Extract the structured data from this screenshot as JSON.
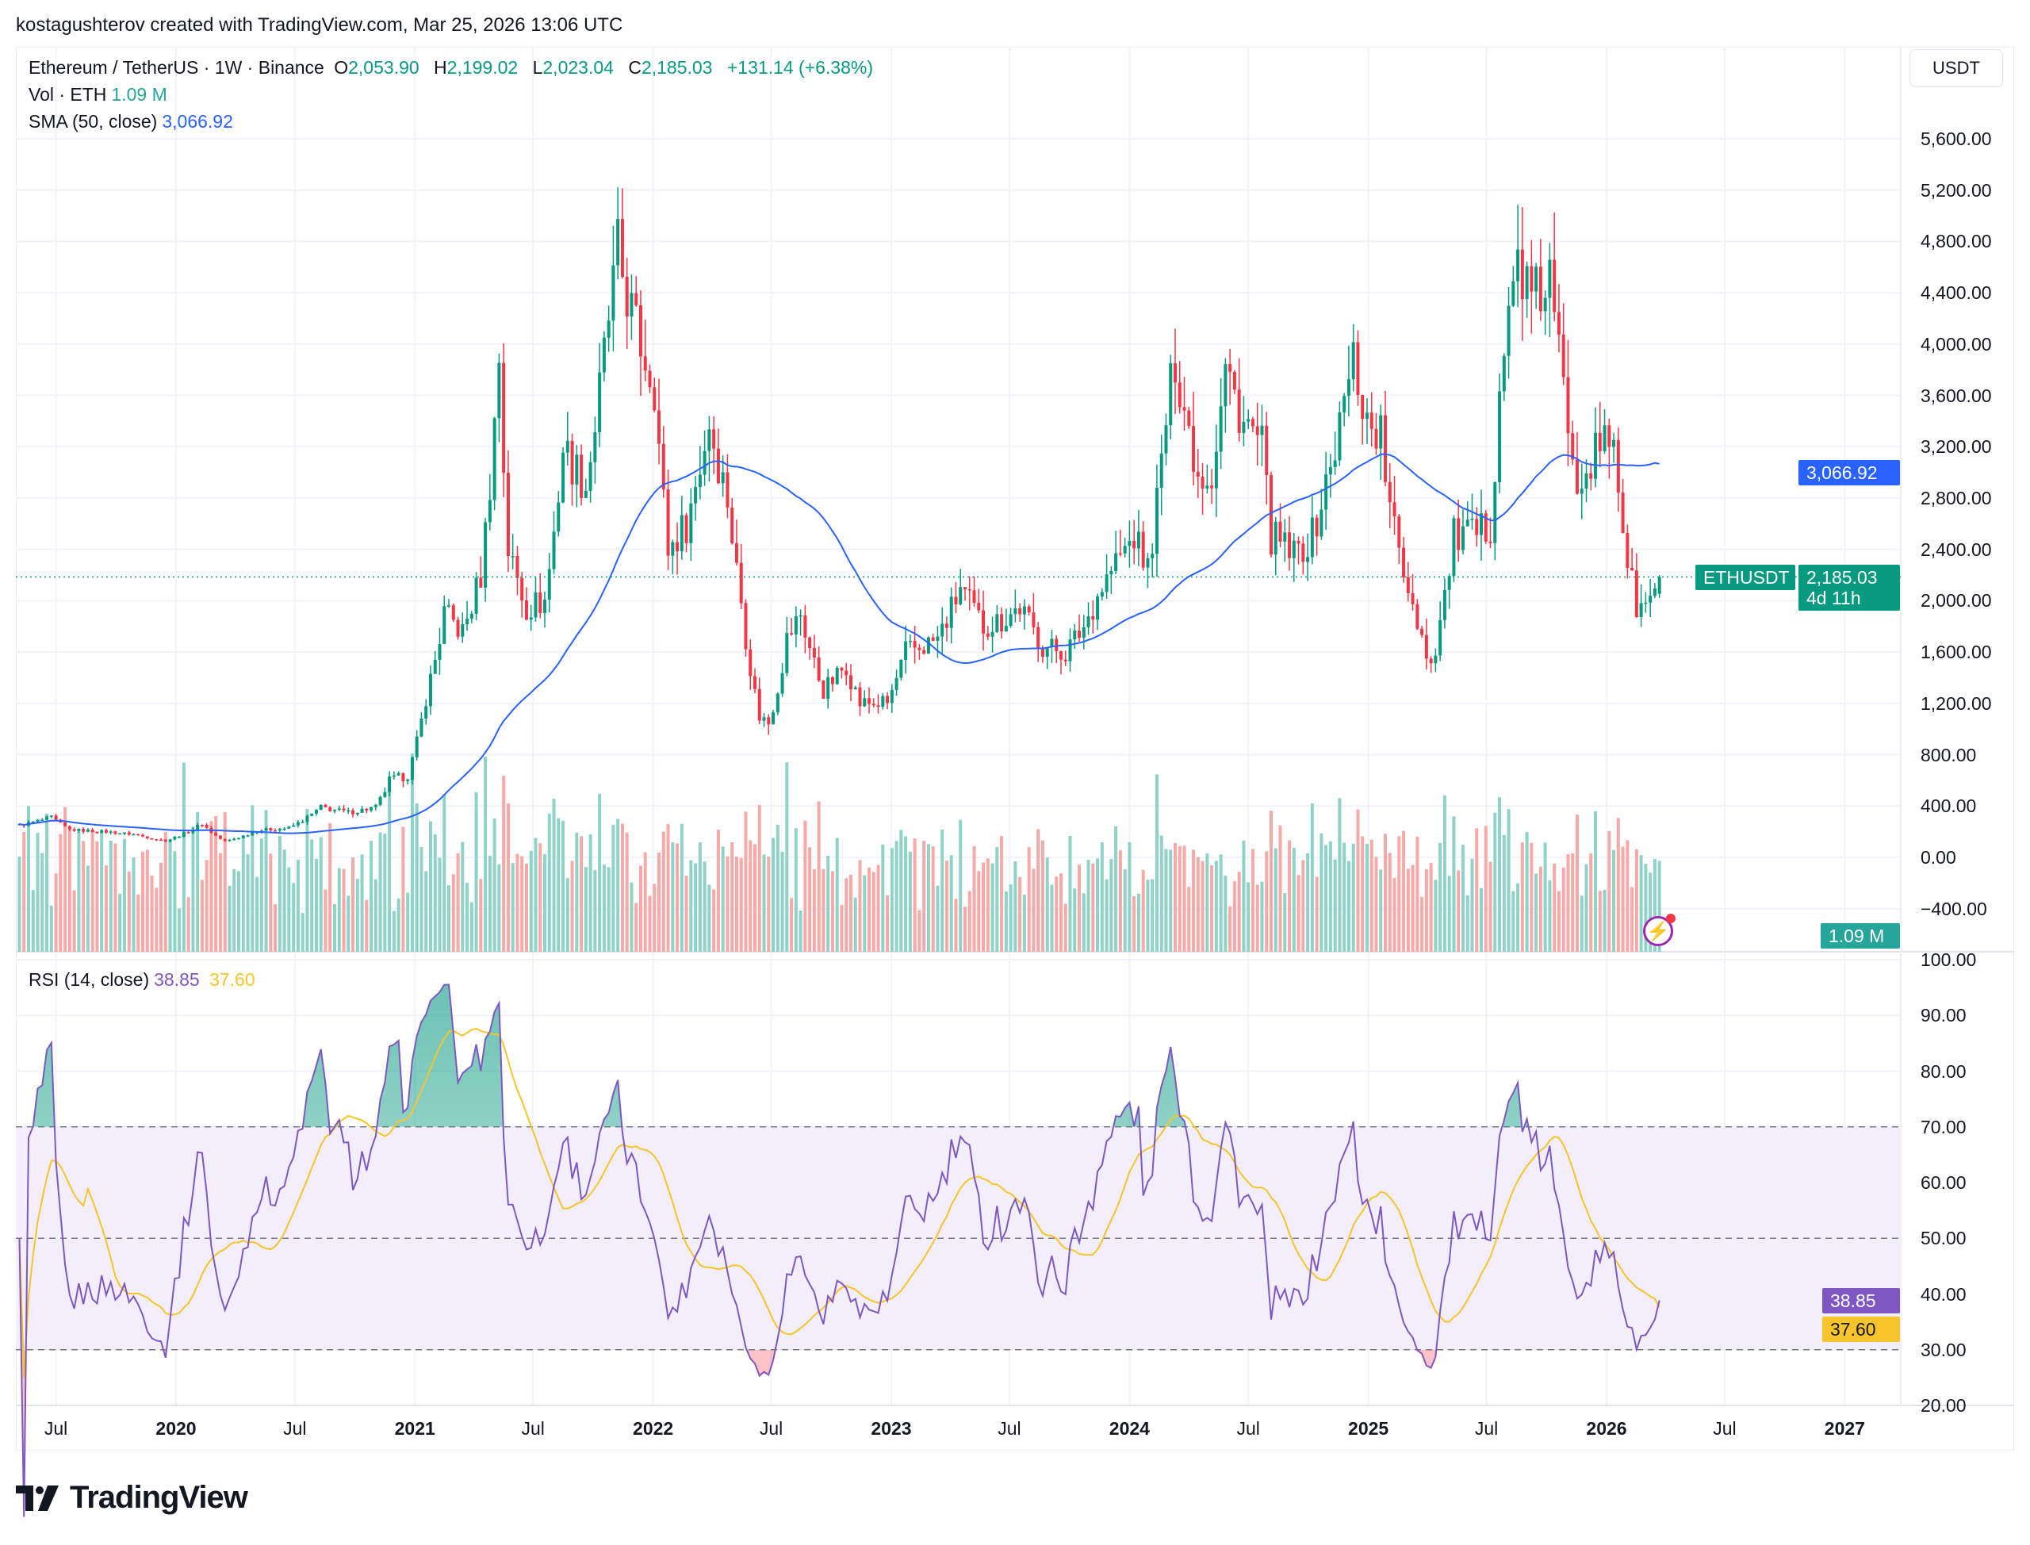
{
  "credit": "kostagushterov created with TradingView.com, Mar 25, 2026 13:06 UTC",
  "legend": {
    "symbol": "Ethereum / TetherUS · 1W · Binance",
    "o_label": "O",
    "open": "2,053.90",
    "h_label": "H",
    "high": "2,199.02",
    "l_label": "L",
    "low": "2,023.04",
    "c_label": "C",
    "close": "2,185.03",
    "change": "+131.14 (+6.38%)",
    "vol_label": "Vol · ETH",
    "vol_value": "1.09 M",
    "sma_label": "SMA (50, close)",
    "sma_value": "3,066.92",
    "rsi_label": "RSI (14, close)",
    "rsi_value": "38.85",
    "rsi_ma_value": "37.60"
  },
  "currency_button": "USDT",
  "tags": {
    "symbol": "ETHUSDT",
    "price": "2,185.03",
    "countdown": "4d 11h",
    "sma": "3,066.92",
    "volume": "1.09 M",
    "rsi": "38.85",
    "rsi_ma": "37.60"
  },
  "colors": {
    "up": "#089981",
    "down": "#f23645",
    "sma": "#2962ff",
    "rsi": "#7e57c2",
    "rsi_ma": "#f7c52b",
    "vol_up": "#8fd3c8",
    "vol_down": "#f7a9a7",
    "rsi_band": "#f2eefb"
  },
  "icons": {
    "alert": "lightning-icon",
    "logo": "tradingview-logo"
  },
  "logo_text": "TradingView",
  "chart_data": {
    "type": "candlestick",
    "interval": "1W",
    "price_axis": {
      "ticks": [
        "−400.00",
        "0.00",
        "400.00",
        "800.00",
        "1,200.00",
        "1,600.00",
        "2,000.00",
        "2,400.00",
        "2,800.00",
        "3,200.00",
        "3,600.00",
        "4,000.00",
        "4,400.00",
        "4,800.00",
        "5,200.00",
        "5,600.00"
      ],
      "tick_values": [
        -400,
        0,
        400,
        800,
        1200,
        1600,
        2000,
        2400,
        2800,
        3200,
        3600,
        4000,
        4400,
        4800,
        5200,
        5600
      ],
      "range": [
        -700,
        6000
      ]
    },
    "rsi_axis": {
      "ticks": [
        "20.00",
        "30.00",
        "40.00",
        "50.00",
        "60.00",
        "70.00",
        "80.00",
        "90.00",
        "100.00"
      ],
      "tick_values": [
        20,
        30,
        40,
        50,
        60,
        70,
        80,
        90,
        100
      ],
      "bands": [
        30,
        50,
        70
      ]
    },
    "time_axis": [
      {
        "label": "Jul",
        "date": "2019-07-01",
        "year": false
      },
      {
        "label": "2020",
        "date": "2020-01-01",
        "year": true
      },
      {
        "label": "Jul",
        "date": "2020-07-01",
        "year": false
      },
      {
        "label": "2021",
        "date": "2021-01-01",
        "year": true
      },
      {
        "label": "Jul",
        "date": "2021-07-01",
        "year": false
      },
      {
        "label": "2022",
        "date": "2022-01-01",
        "year": true
      },
      {
        "label": "Jul",
        "date": "2022-07-01",
        "year": false
      },
      {
        "label": "2023",
        "date": "2023-01-01",
        "year": true
      },
      {
        "label": "Jul",
        "date": "2023-07-01",
        "year": false
      },
      {
        "label": "2024",
        "date": "2024-01-01",
        "year": true
      },
      {
        "label": "Jul",
        "date": "2024-07-01",
        "year": false
      },
      {
        "label": "2025",
        "date": "2025-01-01",
        "year": true
      },
      {
        "label": "Jul",
        "date": "2025-07-01",
        "year": false
      },
      {
        "label": "2026",
        "date": "2026-01-01",
        "year": true
      },
      {
        "label": "Jul",
        "date": "2026-07-01",
        "year": false
      },
      {
        "label": "2027",
        "date": "2027-01-01",
        "year": true
      }
    ],
    "last_price": 2185.03,
    "last_sma": 3066.92,
    "last_rsi": 38.85,
    "last_rsi_ma": 37.6,
    "approx_weekly_close_path": [
      [
        "2019-05-06",
        250
      ],
      [
        "2019-06-24",
        310
      ],
      [
        "2019-07-22",
        215
      ],
      [
        "2019-09-16",
        200
      ],
      [
        "2019-10-28",
        180
      ],
      [
        "2019-12-16",
        130
      ],
      [
        "2020-02-10",
        265
      ],
      [
        "2020-03-16",
        125
      ],
      [
        "2020-05-04",
        210
      ],
      [
        "2020-06-22",
        230
      ],
      [
        "2020-08-10",
        390
      ],
      [
        "2020-09-21",
        350
      ],
      [
        "2020-11-02",
        390
      ],
      [
        "2020-11-23",
        600
      ],
      [
        "2020-12-21",
        640
      ],
      [
        "2021-01-18",
        1250
      ],
      [
        "2021-02-15",
        1900
      ],
      [
        "2021-03-15",
        1750
      ],
      [
        "2021-04-12",
        2200
      ],
      [
        "2021-05-10",
        3900
      ],
      [
        "2021-05-24",
        2400
      ],
      [
        "2021-06-21",
        1950
      ],
      [
        "2021-07-19",
        2000
      ],
      [
        "2021-08-16",
        3200
      ],
      [
        "2021-09-20",
        2900
      ],
      [
        "2021-10-25",
        4200
      ],
      [
        "2021-11-08",
        4700
      ],
      [
        "2021-12-06",
        4100
      ],
      [
        "2022-01-03",
        3700
      ],
      [
        "2022-01-24",
        2400
      ],
      [
        "2022-02-21",
        2600
      ],
      [
        "2022-03-28",
        3400
      ],
      [
        "2022-04-25",
        2800
      ],
      [
        "2022-05-16",
        2000
      ],
      [
        "2022-06-13",
        1100
      ],
      [
        "2022-06-27",
        1050
      ],
      [
        "2022-07-25",
        1700
      ],
      [
        "2022-08-15",
        1900
      ],
      [
        "2022-09-19",
        1300
      ],
      [
        "2022-10-24",
        1500
      ],
      [
        "2022-11-14",
        1200
      ],
      [
        "2022-12-26",
        1200
      ],
      [
        "2023-01-23",
        1600
      ],
      [
        "2023-02-20",
        1650
      ],
      [
        "2023-03-13",
        1700
      ],
      [
        "2023-04-17",
        2100
      ],
      [
        "2023-05-22",
        1800
      ],
      [
        "2023-06-19",
        1850
      ],
      [
        "2023-07-17",
        1950
      ],
      [
        "2023-08-21",
        1650
      ],
      [
        "2023-09-25",
        1600
      ],
      [
        "2023-10-23",
        1800
      ],
      [
        "2023-11-13",
        2050
      ],
      [
        "2023-12-11",
        2300
      ],
      [
        "2024-01-08",
        2500
      ],
      [
        "2024-01-29",
        2250
      ],
      [
        "2024-02-26",
        3400
      ],
      [
        "2024-03-11",
        3900
      ],
      [
        "2024-04-15",
        3000
      ],
      [
        "2024-05-06",
        3000
      ],
      [
        "2024-05-27",
        3800
      ],
      [
        "2024-06-24",
        3400
      ],
      [
        "2024-07-22",
        3200
      ],
      [
        "2024-08-05",
        2500
      ],
      [
        "2024-09-09",
        2350
      ],
      [
        "2024-10-07",
        2500
      ],
      [
        "2024-11-11",
        3200
      ],
      [
        "2024-12-09",
        3900
      ],
      [
        "2024-12-30",
        3400
      ],
      [
        "2025-01-20",
        3300
      ],
      [
        "2025-02-03",
        2700
      ],
      [
        "2025-03-10",
        2000
      ],
      [
        "2025-04-07",
        1500
      ],
      [
        "2025-05-12",
        2500
      ],
      [
        "2025-06-16",
        2500
      ],
      [
        "2025-07-07",
        2600
      ],
      [
        "2025-07-21",
        3700
      ],
      [
        "2025-08-18",
        4700
      ],
      [
        "2025-09-08",
        4300
      ],
      [
        "2025-10-06",
        4500
      ],
      [
        "2025-10-20",
        3900
      ],
      [
        "2025-11-17",
        3000
      ],
      [
        "2025-12-08",
        3100
      ],
      [
        "2026-01-12",
        3300
      ],
      [
        "2026-02-02",
        2300
      ],
      [
        "2026-02-16",
        1950
      ],
      [
        "2026-03-02",
        1950
      ],
      [
        "2026-03-23",
        2185
      ]
    ]
  }
}
